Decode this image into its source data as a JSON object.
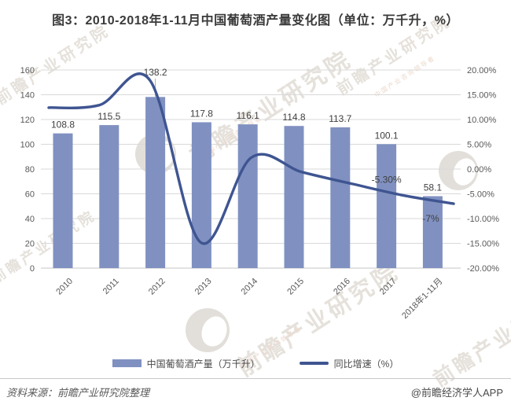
{
  "title": "图3：2010-2018年1-11月中国葡萄酒产量变化图（单位：万千升，%）",
  "source_note": "资料来源：前瞻产业研究院整理",
  "credit": "@前瞻经济学人APP",
  "watermark": {
    "text": "前瞻产业研究院",
    "subtext": "中国产业咨询领导者"
  },
  "colors": {
    "bar": "#8091C1",
    "line": "#3F5591",
    "grid": "#D9D9D9",
    "axis_line": "#C6C6C6",
    "tick_text": "#595959",
    "label_text": "#3F3F3F",
    "leader_line": "#ABABAB"
  },
  "legend": {
    "bar_label": "中国葡萄酒产量（万千升）",
    "line_label": "同比增速（%）"
  },
  "chart_data": {
    "type": "bar",
    "subtype": "combo bar+line, dual axis",
    "title": "图3：2010-2018年1-11月中国葡萄酒产量变化图（单位：万千升，%）",
    "categories": [
      "2010",
      "2011",
      "2012",
      "2013",
      "2014",
      "2015",
      "2016",
      "2017",
      "2018年1-11月"
    ],
    "series": [
      {
        "name": "中国葡萄酒产量（万千升）",
        "type": "bar",
        "axis": "left",
        "values": [
          108.8,
          115.5,
          138.2,
          117.8,
          116.1,
          114.8,
          113.7,
          100.1,
          58.1
        ],
        "labels": [
          "108.8",
          "115.5",
          "138.2",
          "117.8",
          "116.1",
          "114.8",
          "113.7",
          "100.1",
          "58.1"
        ]
      },
      {
        "name": "同比增速（%）",
        "type": "line",
        "axis": "right",
        "values": [
          12.4,
          12.9,
          17.9,
          -14.8,
          2.3,
          -0.6,
          -3.0,
          -5.3,
          -7.0
        ],
        "point_labels": [
          null,
          null,
          null,
          null,
          null,
          null,
          null,
          "-5.30%",
          "-7%"
        ],
        "point_label_sides": [
          null,
          null,
          null,
          null,
          null,
          null,
          null,
          "above",
          "below"
        ]
      }
    ],
    "left_axis": {
      "min": 0,
      "max": 160,
      "step": 20,
      "ticks": [
        "160",
        "140",
        "120",
        "100",
        "80",
        "60",
        "40",
        "20",
        "0"
      ]
    },
    "right_axis": {
      "min": -20,
      "max": 20,
      "step": 5,
      "ticks": [
        "20.00%",
        "15.00%",
        "10.00%",
        "5.00%",
        "0.00%",
        "-5.00%",
        "-10.00%",
        "-15.00%",
        "-20.00%"
      ]
    },
    "bar_label_raised_index": 2,
    "grid": true,
    "legend_position": "bottom",
    "xlabel": "",
    "ylabel": ""
  }
}
